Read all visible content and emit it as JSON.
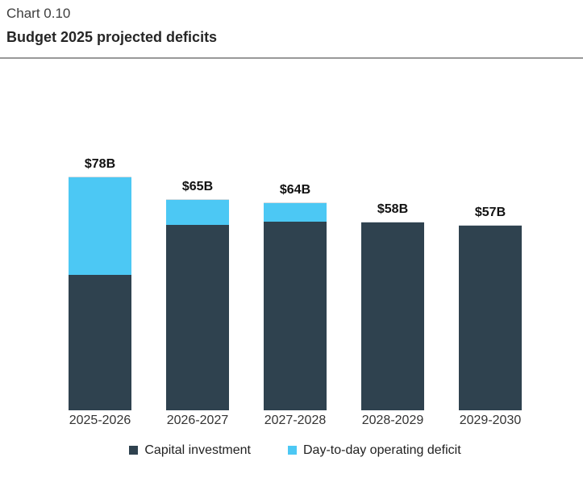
{
  "header": {
    "kicker": "Chart 0.10",
    "title": "Budget 2025 projected deficits"
  },
  "chart_data": {
    "type": "bar",
    "stacked": true,
    "title": "Budget 2025 projected deficits",
    "categories": [
      "2025-2026",
      "2026-2027",
      "2027-2028",
      "2028-2029",
      "2029-2030"
    ],
    "series": [
      {
        "name": "Capital investment",
        "color": "#2F424F",
        "values": [
          45,
          57,
          58,
          58,
          57
        ]
      },
      {
        "name": "Day-to-day operating deficit",
        "color": "#4CC8F4",
        "values": [
          33,
          8,
          6,
          0,
          0
        ]
      }
    ],
    "totals": [
      78,
      65,
      64,
      58,
      57
    ],
    "total_labels": [
      "$78B",
      "$65B",
      "$64B",
      "$58B",
      "$57B"
    ],
    "xlabel": "",
    "ylabel": "",
    "ylim": [
      0,
      80
    ],
    "grid": false,
    "axis_line": false,
    "value_labels": "above-bar-totals",
    "legend_position": "bottom"
  },
  "legend": {
    "items": [
      {
        "label": "Capital investment",
        "color": "#2F424F"
      },
      {
        "label": "Day-to-day operating deficit",
        "color": "#4CC8F4"
      }
    ]
  },
  "colors": {
    "capital": "#2F424F",
    "operating": "#4CC8F4",
    "divider": "#999999"
  }
}
